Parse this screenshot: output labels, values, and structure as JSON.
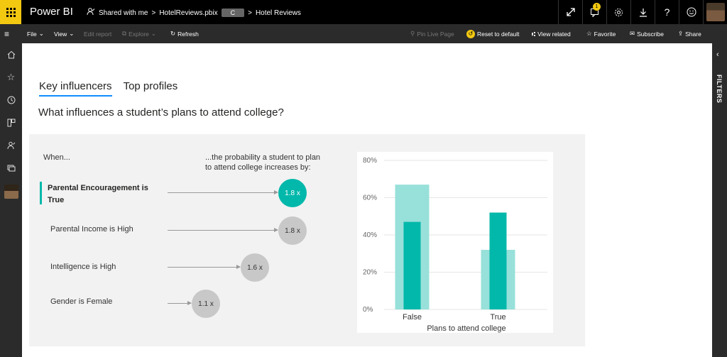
{
  "app": {
    "name": "Power BI"
  },
  "breadcrumb": {
    "shared": "Shared with me",
    "file": "HotelReviews.pbix",
    "workspace": "C",
    "report": "Hotel Reviews"
  },
  "topbar_icons": [
    "expand-icon",
    "notifications-icon",
    "settings-icon",
    "download-icon",
    "help-icon",
    "feedback-icon",
    "profile-avatar"
  ],
  "notifications": {
    "count": "1"
  },
  "toolbar": {
    "file": "File",
    "view": "View",
    "edit_report": "Edit report",
    "explore": "Explore",
    "refresh": "Refresh",
    "pin_live_page": "Pin Live Page",
    "reset_to_default": "Reset to default",
    "view_related": "View related",
    "favorite": "Favorite",
    "subscribe": "Subscribe",
    "share": "Share"
  },
  "left_nav": [
    "menu-icon",
    "home-icon",
    "favorites-icon",
    "recent-icon",
    "apps-icon",
    "shared-icon",
    "workspaces-icon",
    "user-avatar"
  ],
  "filters_pane": {
    "label": "FILTERS"
  },
  "report": {
    "tabs": [
      "Key influencers",
      "Top profiles"
    ],
    "active_tab": "Key influencers",
    "question": "What influences a student’s plans to attend college?",
    "when_label": "When...",
    "prob_line1": "...the probability a student to plan",
    "prob_line2": "to attend college increases by:",
    "influencers": [
      {
        "line1": "Parental Encouragement is",
        "line2": "True",
        "value": "1.8 x",
        "selected": true
      },
      {
        "line1": "Parental Income is High",
        "line2": "",
        "value": "1.8 x",
        "selected": false
      },
      {
        "line1": "Intelligence is High",
        "line2": "",
        "value": "1.6 x",
        "selected": false
      },
      {
        "line1": "Gender is Female",
        "line2": "",
        "value": "1.1 x",
        "selected": false
      }
    ]
  },
  "colors": {
    "accent": "#01b8aa",
    "accent_light": "#98e0da",
    "bubble_gray": "#c8c8c8",
    "brand_yellow": "#f2c811",
    "tab_underline": "#118dff"
  },
  "chart_data": {
    "type": "bar",
    "categories": [
      "False",
      "True"
    ],
    "series": [
      {
        "values": [
          0.67,
          0.32
        ],
        "color": "#98e0da"
      },
      {
        "values": [
          0.47,
          0.52
        ],
        "color": "#01b8aa"
      }
    ],
    "xlabel": "Plans to attend college",
    "ylabel": "",
    "ylim": [
      0,
      0.8
    ],
    "yticks": [
      "0%",
      "20%",
      "40%",
      "60%",
      "80%"
    ],
    "grid": true
  }
}
